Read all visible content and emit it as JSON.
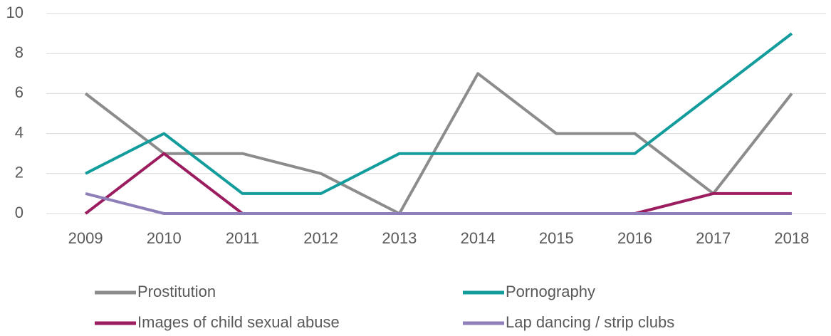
{
  "chart_data": {
    "type": "line",
    "categories": [
      "2009",
      "2010",
      "2011",
      "2012",
      "2013",
      "2014",
      "2015",
      "2016",
      "2017",
      "2018"
    ],
    "series": [
      {
        "name": "Prostitution",
        "color": "#8c8c8c",
        "values": [
          6,
          3,
          3,
          2,
          0,
          7,
          4,
          4,
          1,
          6
        ]
      },
      {
        "name": "Pornography",
        "color": "#139c9c",
        "values": [
          2,
          4,
          1,
          1,
          3,
          3,
          3,
          3,
          6,
          9
        ]
      },
      {
        "name": "Images of child sexual abuse",
        "color": "#9b1d5f",
        "values": [
          0,
          3,
          0,
          0,
          0,
          0,
          0,
          0,
          1,
          1
        ]
      },
      {
        "name": "Lap dancing / strip clubs",
        "color": "#8f7fb8",
        "values": [
          1,
          0,
          0,
          0,
          0,
          0,
          0,
          0,
          0,
          0
        ]
      }
    ],
    "ylim": [
      0,
      10
    ],
    "yticks": [
      0,
      2,
      4,
      6,
      8,
      10
    ],
    "grid": true,
    "legend": "bottom"
  }
}
